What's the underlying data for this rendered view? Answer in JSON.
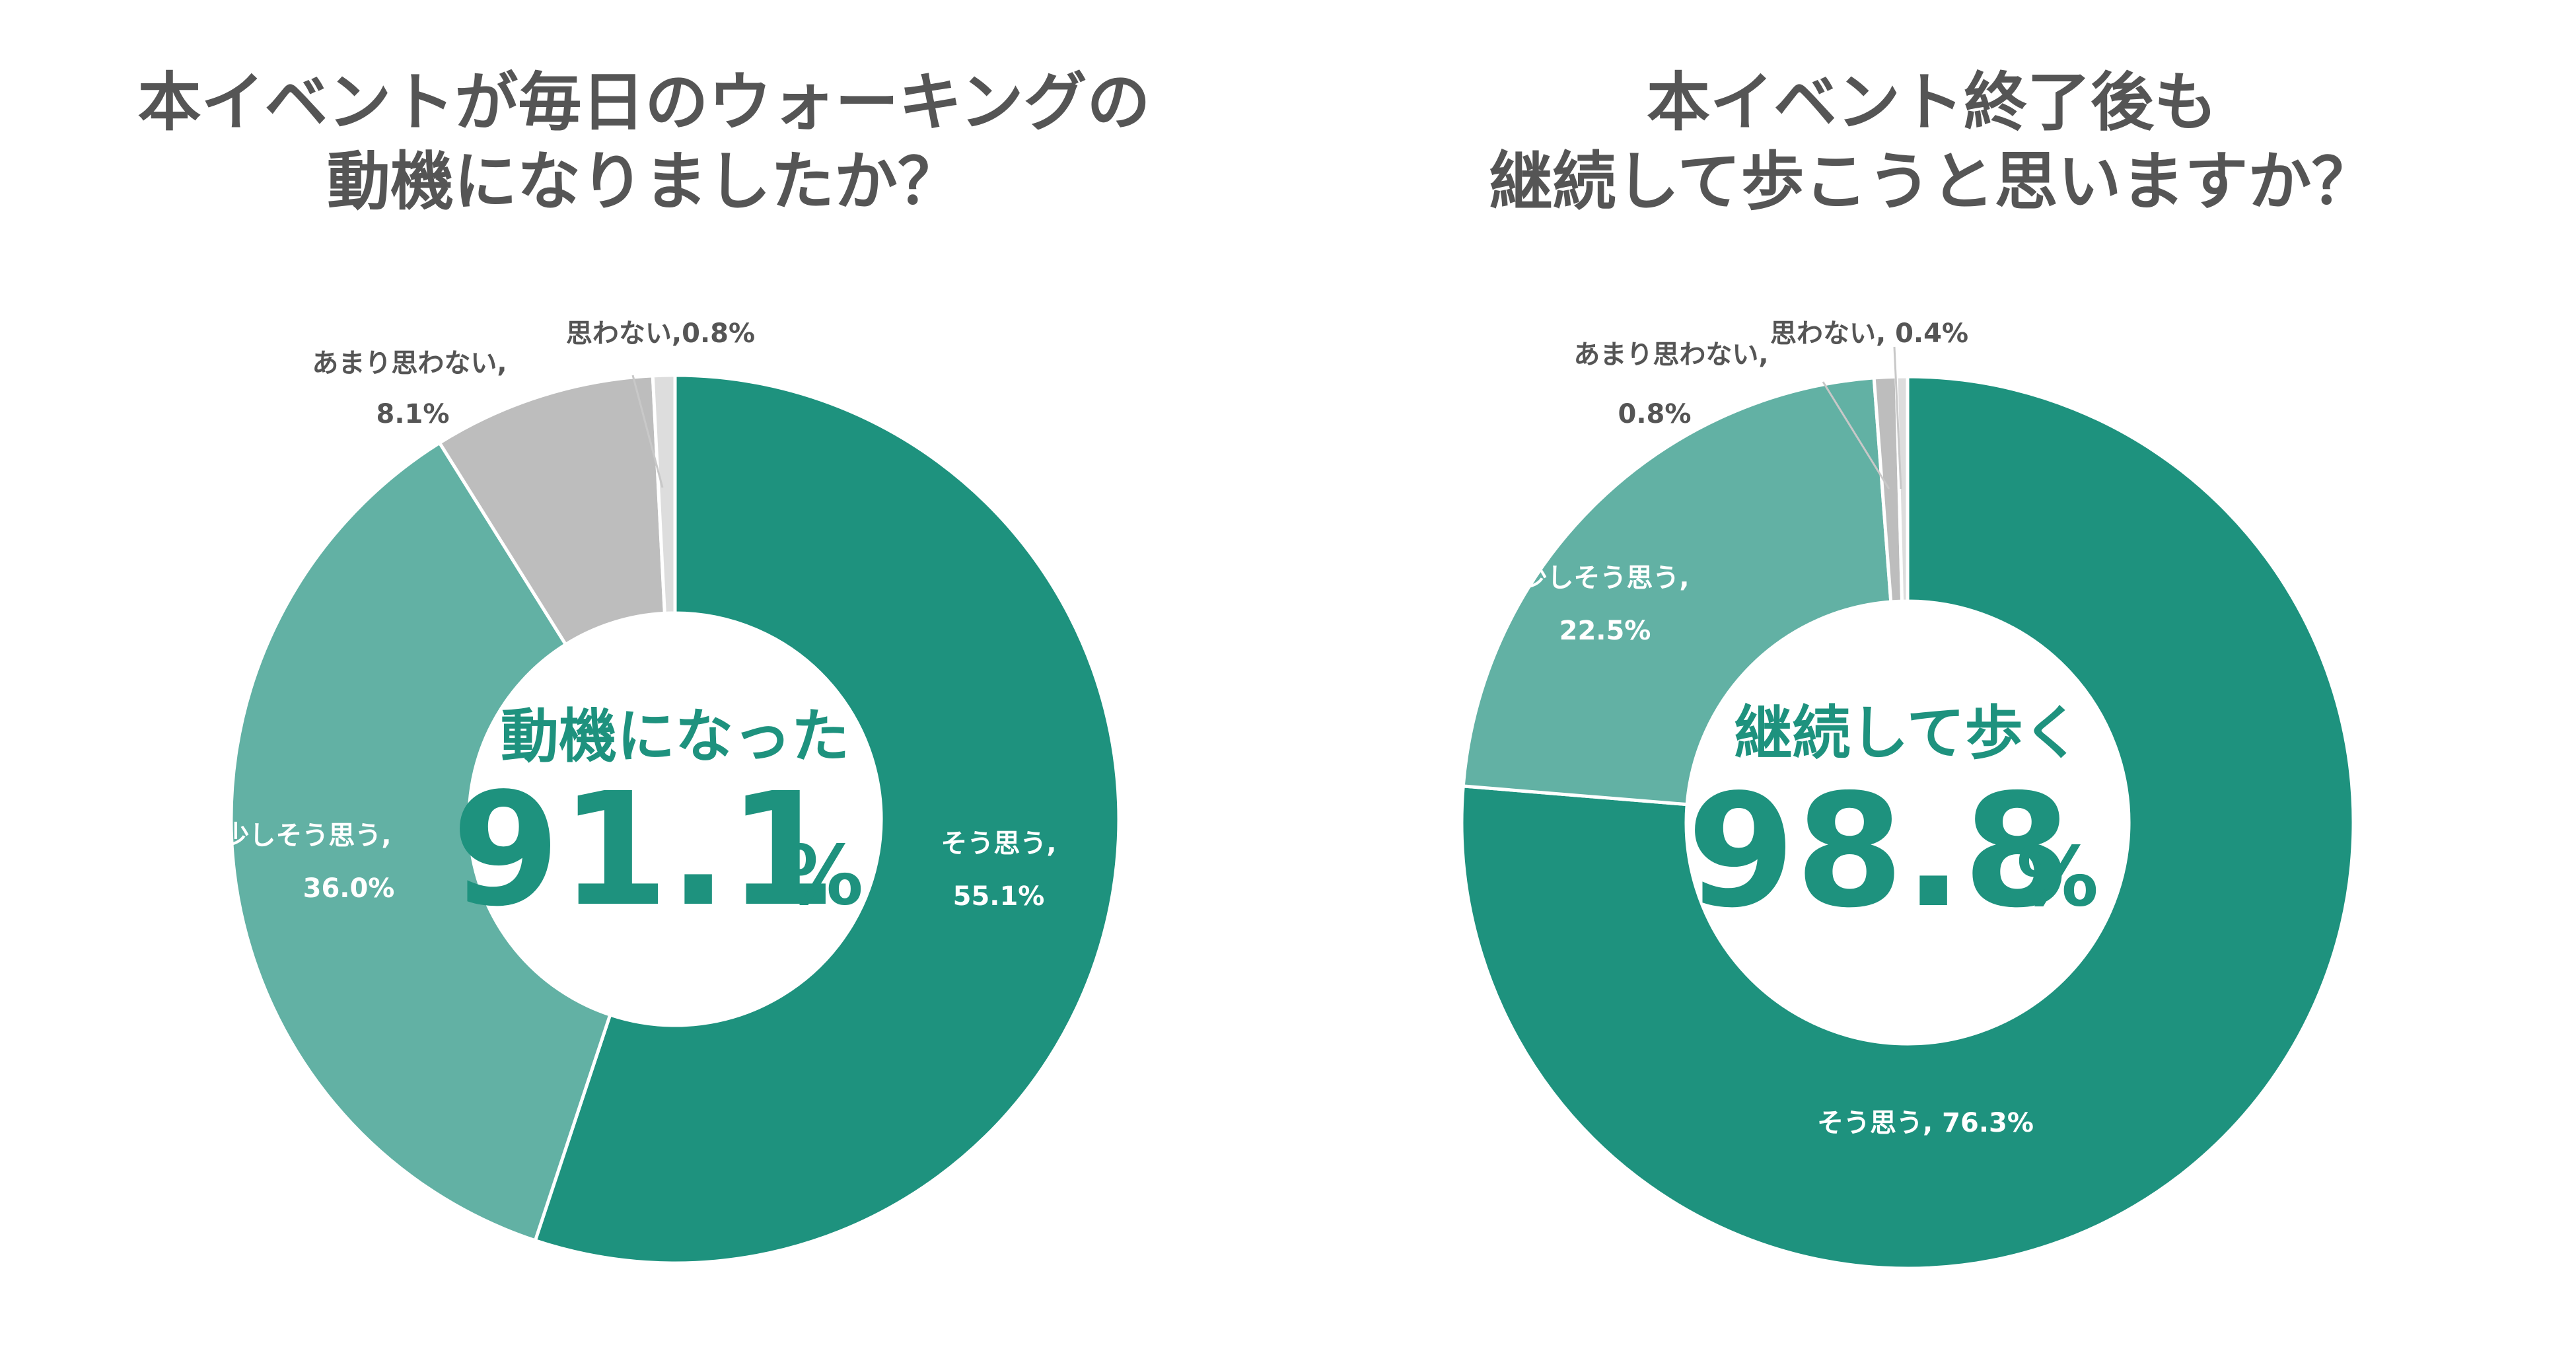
{
  "colors": {
    "strong": "#1e927e",
    "light": "#62b1a4",
    "gray": "#bdbdbd",
    "lightgray": "#dddddd",
    "text": "#555555"
  },
  "chart_data": [
    {
      "type": "pie",
      "title": "本イベントが毎日のウォーキングの動機になりましたか？",
      "title_lines": [
        "本イベントが毎日のウォーキングの",
        "動機になりましたか？"
      ],
      "center_heading": "動機になった",
      "center_value": "91.1",
      "center_unit": "%",
      "slices": [
        {
          "name": "そう思う",
          "value": 55.1,
          "label_line1": "そう思う,",
          "label_line2": "55.1%"
        },
        {
          "name": "少しそう思う",
          "value": 36.0,
          "label_line1": "少しそう思う,",
          "label_line2": "36.0%"
        },
        {
          "name": "あまり思わない",
          "value": 8.1,
          "label_line1": "あまり思わない,",
          "label_line2": "8.1%"
        },
        {
          "name": "思わない",
          "value": 0.8,
          "label_line1": "思わない,0.8%",
          "label_line2": ""
        }
      ]
    },
    {
      "type": "pie",
      "title": "本イベント終了後も継続して歩こうと思いますか？",
      "title_lines": [
        "本イベント終了後も",
        "継続して歩こうと思いますか？"
      ],
      "center_heading": "継続して歩く",
      "center_value": "98.8",
      "center_unit": "%",
      "slices": [
        {
          "name": "そう思う",
          "value": 76.3,
          "label_line1": "そう思う, 76.3%",
          "label_line2": ""
        },
        {
          "name": "少しそう思う",
          "value": 22.5,
          "label_line1": "少しそう思う,",
          "label_line2": "22.5%"
        },
        {
          "name": "あまり思わない",
          "value": 0.8,
          "label_line1": "あまり思わない,",
          "label_line2": "0.8%"
        },
        {
          "name": "思わない",
          "value": 0.4,
          "label_line1": "思わない, 0.4%",
          "label_line2": ""
        }
      ]
    }
  ]
}
